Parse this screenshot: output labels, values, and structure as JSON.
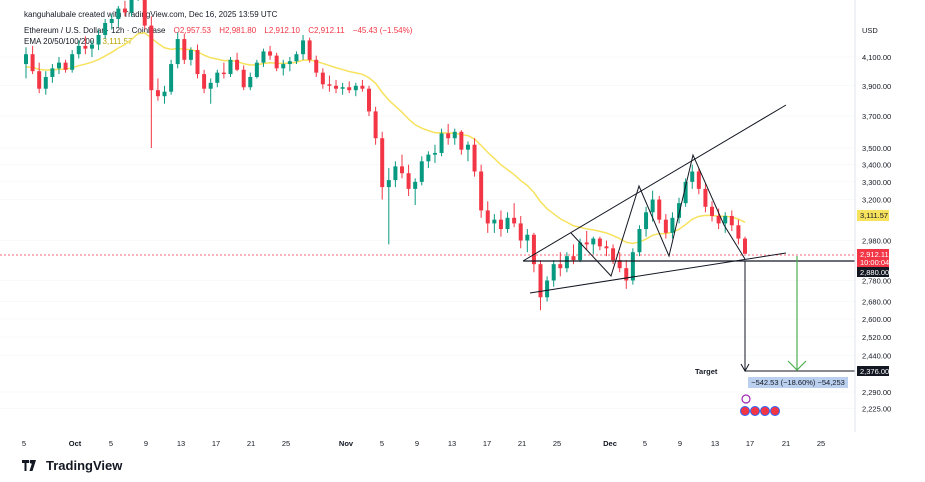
{
  "header": {
    "credit": "kanguhalubale created with TradingView.com, Dec 16, 2025 13:59 UTC",
    "symbol": "Ethereum / U.S. Dollar · 12h · Coinbase",
    "ohlc": [
      "O2,957.53",
      "H2,981.80",
      "L2,912.10",
      "C2,912.11",
      "−45.43 (−1.54%)"
    ],
    "ema_label": "EMA 20/50/100/200",
    "ema_value": "3,111.57"
  },
  "axis": {
    "currency": "USD",
    "price_ticks": [
      "4,100.00",
      "3,900.00",
      "3,700.00",
      "3,500.00",
      "3,400.00",
      "3,300.00",
      "3,200.00",
      "2,980.00",
      "2,780.00",
      "2,680.00",
      "2,600.00",
      "2,520.00",
      "2,440.00",
      "2,290.00",
      "2,225.00"
    ],
    "time_ticks": [
      "5",
      "Oct",
      "5",
      "9",
      "13",
      "17",
      "21",
      "25",
      "Nov",
      "5",
      "9",
      "13",
      "17",
      "21",
      "25",
      "Dec",
      "5",
      "9",
      "13",
      "17",
      "21",
      "25"
    ],
    "bold_time_ticks": [
      "Oct",
      "Nov",
      "Dec"
    ]
  },
  "labels": {
    "ema_price": "3,111.57",
    "last_price": "2,912.11",
    "countdown": "10:00:04",
    "support_price": "2,880.00",
    "target_price": "2,376.00",
    "target_text": "Target",
    "measure_text": "−542.53 (−18.60%) −54,253"
  },
  "brand": {
    "name": "TradingView"
  },
  "colors": {
    "up": "#089981",
    "down": "#f23645",
    "ema": "#f7e25e",
    "measure_arrow": "#4caf50",
    "measure_box": "#bbd0ef"
  },
  "chart_data": {
    "type": "candlestick",
    "title": "Ethereum / U.S. Dollar · 12h · Coinbase",
    "y_scale": "log",
    "y_ticks": [
      4100,
      3900,
      3700,
      3500,
      3400,
      3300,
      3200,
      2980,
      2780,
      2680,
      2600,
      2520,
      2440,
      2290,
      2225
    ],
    "x_axis": "Sep 2025 – Dec 2025, 12h candles",
    "ohlc_last": {
      "open": 2957.53,
      "high": 2981.8,
      "low": 2912.1,
      "close": 2912.11,
      "change": -45.43,
      "change_pct": -1.54
    },
    "ema_last": 3111.57,
    "candles": [
      [
        4050,
        4170,
        3950,
        4120
      ],
      [
        4120,
        4180,
        3980,
        4000
      ],
      [
        4000,
        4060,
        3850,
        3880
      ],
      [
        3880,
        4000,
        3840,
        3960
      ],
      [
        3960,
        4050,
        3920,
        4020
      ],
      [
        4020,
        4100,
        3980,
        4060
      ],
      [
        4060,
        4080,
        3990,
        4010
      ],
      [
        4010,
        4150,
        3990,
        4120
      ],
      [
        4120,
        4220,
        4090,
        4180
      ],
      [
        4180,
        4250,
        4120,
        4160
      ],
      [
        4160,
        4220,
        4100,
        4190
      ],
      [
        4190,
        4300,
        4150,
        4260
      ],
      [
        4260,
        4380,
        4230,
        4350
      ],
      [
        4350,
        4420,
        4300,
        4380
      ],
      [
        4380,
        4480,
        4320,
        4460
      ],
      [
        4460,
        4520,
        4400,
        4430
      ],
      [
        4430,
        4620,
        4400,
        4580
      ],
      [
        4580,
        4720,
        4520,
        4680
      ],
      [
        4680,
        4760,
        4300,
        4330
      ],
      [
        4330,
        4400,
        3500,
        3870
      ],
      [
        3870,
        3950,
        3800,
        3830
      ],
      [
        3830,
        3900,
        3780,
        3860
      ],
      [
        3860,
        4080,
        3840,
        4050
      ],
      [
        4050,
        4280,
        4020,
        4230
      ],
      [
        4230,
        4270,
        4050,
        4080
      ],
      [
        4080,
        4170,
        4040,
        4150
      ],
      [
        4150,
        4190,
        3950,
        3980
      ],
      [
        3980,
        4010,
        3850,
        3880
      ],
      [
        3880,
        3950,
        3780,
        3920
      ],
      [
        3920,
        4010,
        3890,
        3990
      ],
      [
        3990,
        4060,
        3950,
        3980
      ],
      [
        3980,
        4100,
        3960,
        4080
      ],
      [
        4080,
        4130,
        4000,
        4010
      ],
      [
        4010,
        4040,
        3870,
        3890
      ],
      [
        3890,
        3990,
        3870,
        3960
      ],
      [
        3960,
        4080,
        3950,
        4060
      ],
      [
        4060,
        4160,
        4030,
        4140
      ],
      [
        4140,
        4180,
        4080,
        4110
      ],
      [
        4110,
        4130,
        4000,
        4020
      ],
      [
        4020,
        4080,
        3970,
        4050
      ],
      [
        4050,
        4100,
        4000,
        4070
      ],
      [
        4070,
        4140,
        4050,
        4120
      ],
      [
        4120,
        4260,
        4080,
        4220
      ],
      [
        4220,
        4240,
        4060,
        4080
      ],
      [
        4080,
        4110,
        3960,
        3990
      ],
      [
        3990,
        4020,
        3880,
        3910
      ],
      [
        3910,
        3970,
        3860,
        3900
      ],
      [
        3900,
        3940,
        3850,
        3880
      ],
      [
        3880,
        3920,
        3840,
        3890
      ],
      [
        3890,
        3930,
        3850,
        3870
      ],
      [
        3870,
        3920,
        3830,
        3900
      ],
      [
        3900,
        3940,
        3860,
        3880
      ],
      [
        3880,
        3900,
        3700,
        3730
      ],
      [
        3730,
        3760,
        3520,
        3560
      ],
      [
        3560,
        3600,
        3200,
        3270
      ],
      [
        3270,
        3380,
        2960,
        3310
      ],
      [
        3310,
        3420,
        3270,
        3390
      ],
      [
        3390,
        3460,
        3320,
        3350
      ],
      [
        3350,
        3400,
        3220,
        3260
      ],
      [
        3260,
        3320,
        3170,
        3300
      ],
      [
        3300,
        3450,
        3280,
        3420
      ],
      [
        3420,
        3480,
        3380,
        3460
      ],
      [
        3460,
        3520,
        3410,
        3470
      ],
      [
        3470,
        3620,
        3450,
        3590
      ],
      [
        3590,
        3650,
        3520,
        3560
      ],
      [
        3560,
        3620,
        3520,
        3600
      ],
      [
        3600,
        3610,
        3460,
        3490
      ],
      [
        3490,
        3540,
        3420,
        3520
      ],
      [
        3520,
        3560,
        3330,
        3360
      ],
      [
        3360,
        3400,
        3100,
        3140
      ],
      [
        3140,
        3190,
        3020,
        3070
      ],
      [
        3070,
        3120,
        3020,
        3090
      ],
      [
        3090,
        3140,
        3000,
        3040
      ],
      [
        3040,
        3130,
        3020,
        3100
      ],
      [
        3100,
        3180,
        3050,
        3070
      ],
      [
        3070,
        3110,
        2940,
        2980
      ],
      [
        2980,
        3040,
        2920,
        3010
      ],
      [
        3010,
        3020,
        2820,
        2860
      ],
      [
        2860,
        2880,
        2640,
        2700
      ],
      [
        2700,
        2800,
        2680,
        2780
      ],
      [
        2780,
        2880,
        2750,
        2860
      ],
      [
        2860,
        2920,
        2800,
        2840
      ],
      [
        2840,
        2920,
        2820,
        2900
      ],
      [
        2900,
        2960,
        2860,
        2880
      ],
      [
        2880,
        2990,
        2870,
        2970
      ],
      [
        2970,
        3030,
        2930,
        2960
      ],
      [
        2960,
        3000,
        2910,
        2990
      ],
      [
        2990,
        3000,
        2930,
        2950
      ],
      [
        2950,
        2980,
        2900,
        2940
      ],
      [
        2940,
        2960,
        2860,
        2880
      ],
      [
        2880,
        2920,
        2820,
        2840
      ],
      [
        2840,
        2880,
        2740,
        2780
      ],
      [
        2780,
        2940,
        2760,
        2920
      ],
      [
        2920,
        3060,
        2900,
        3040
      ],
      [
        3040,
        3160,
        3000,
        3130
      ],
      [
        3130,
        3250,
        3080,
        3200
      ],
      [
        3200,
        3220,
        3070,
        3090
      ],
      [
        3090,
        3120,
        2990,
        3020
      ],
      [
        3020,
        3130,
        2990,
        3100
      ],
      [
        3100,
        3210,
        3070,
        3180
      ],
      [
        3180,
        3320,
        3160,
        3300
      ],
      [
        3300,
        3400,
        3260,
        3360
      ],
      [
        3360,
        3380,
        3230,
        3260
      ],
      [
        3260,
        3290,
        3130,
        3160
      ],
      [
        3160,
        3190,
        3080,
        3110
      ],
      [
        3110,
        3150,
        3040,
        3070
      ],
      [
        3070,
        3130,
        3020,
        3110
      ],
      [
        3110,
        3140,
        3030,
        3060
      ],
      [
        3060,
        3090,
        2960,
        2990
      ],
      [
        2990,
        3000,
        2912,
        2912
      ]
    ],
    "ema_note": "EMA curve drawn through data",
    "annotations": {
      "pattern": "rising wedge with double top",
      "support_level": 2880.0,
      "target": 2376.0,
      "measured_move": {
        "points": -542.53,
        "percent": -18.6,
        "ticks": -54253
      }
    }
  }
}
